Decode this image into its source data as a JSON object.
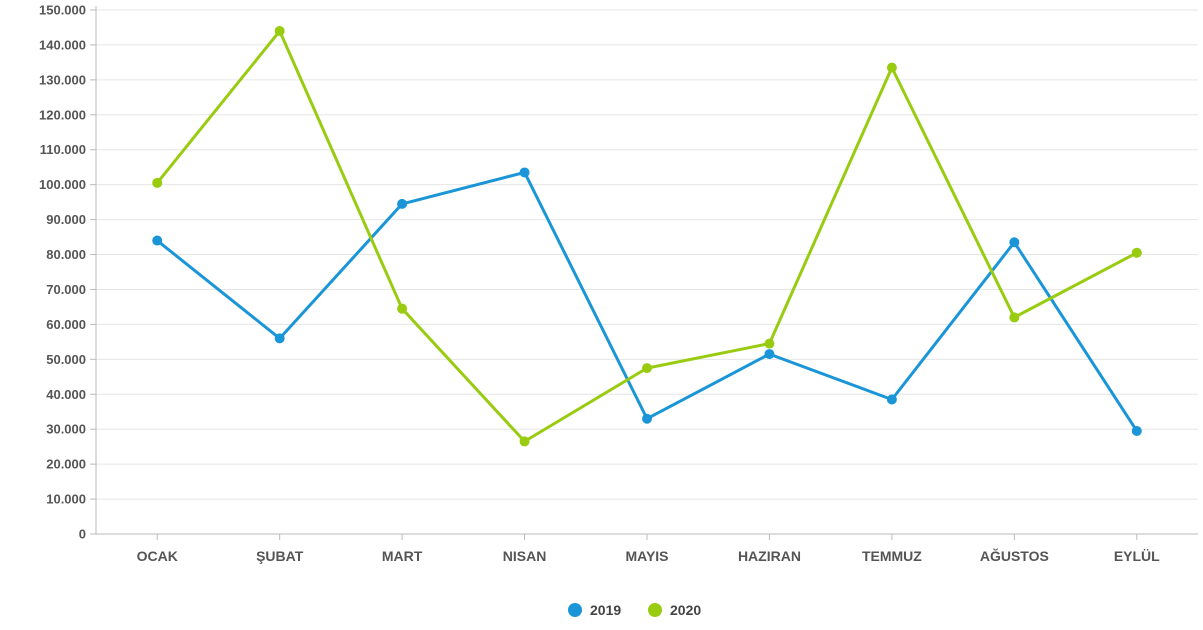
{
  "chart_data": {
    "type": "line",
    "categories": [
      "OCAK",
      "ŞUBAT",
      "MART",
      "NISAN",
      "MAYIS",
      "HAZIRAN",
      "TEMMUZ",
      "AĞUSTOS",
      "EYLÜL"
    ],
    "series": [
      {
        "name": "2019",
        "color": "#1a96d8",
        "values": [
          84000,
          56000,
          94500,
          103500,
          33000,
          51500,
          38500,
          83500,
          29500
        ]
      },
      {
        "name": "2020",
        "color": "#99cc11",
        "values": [
          100500,
          144000,
          64500,
          26500,
          47500,
          54500,
          133500,
          62000,
          80500
        ]
      }
    ],
    "yticks": [
      "0",
      "10.000",
      "20.000",
      "30.000",
      "40.000",
      "50.000",
      "60.000",
      "70.000",
      "80.000",
      "90.000",
      "100.000",
      "110.000",
      "120.000",
      "130.000",
      "140.000",
      "150.000"
    ],
    "ylim": [
      0,
      150000
    ],
    "grid": true,
    "legend_position": "bottom-center"
  }
}
